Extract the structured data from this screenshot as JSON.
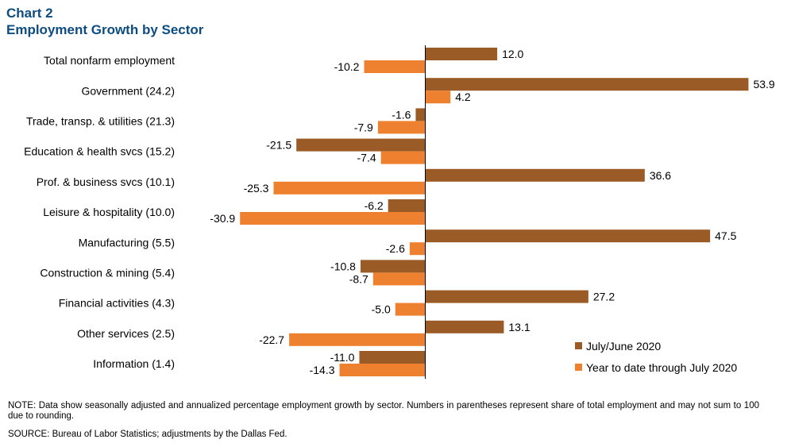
{
  "title": {
    "line1": "Chart 2",
    "line2": "Employment Growth by Sector"
  },
  "colors": {
    "title": "#0d4c80",
    "series_july": "#9b5b26",
    "series_ytd": "#ee8130",
    "axis": "#000000"
  },
  "notes": {
    "note": "NOTE: Data show seasonally adjusted and annualized percentage employment growth by sector. Numbers in parentheses represent share of total employment and may not sum to 100 due to rounding.",
    "source": "SOURCE: Bureau of Labor Statistics; adjustments by the Dallas Fed."
  },
  "chart_data": {
    "type": "bar",
    "orientation": "horizontal",
    "categories": [
      "Total nonfarm employment",
      "Government (24.2)",
      "Trade, transp. & utilities (21.3)",
      "Education & health svcs (15.2)",
      "Prof. & business svcs (10.1)",
      "Leisure & hospitality (10.0)",
      "Manufacturing (5.5)",
      "Construction & mining (5.4)",
      "Financial activities (4.3)",
      "Other services (2.5)",
      "Information (1.4)"
    ],
    "series": [
      {
        "name": "July/June 2020",
        "color": "#9b5b26",
        "values": [
          12.0,
          53.9,
          -1.6,
          -21.5,
          36.6,
          -6.2,
          47.5,
          -10.8,
          27.2,
          13.1,
          -11.0
        ]
      },
      {
        "name": "Year to date through July 2020",
        "color": "#ee8130",
        "values": [
          -10.2,
          4.2,
          -7.9,
          -7.4,
          -25.3,
          -30.9,
          -2.6,
          -8.7,
          -5.0,
          -22.7,
          -14.3
        ]
      }
    ],
    "xlim": [
      -31,
      54
    ],
    "data_labels": true,
    "grid": false,
    "legend_position": "bottom-right"
  }
}
